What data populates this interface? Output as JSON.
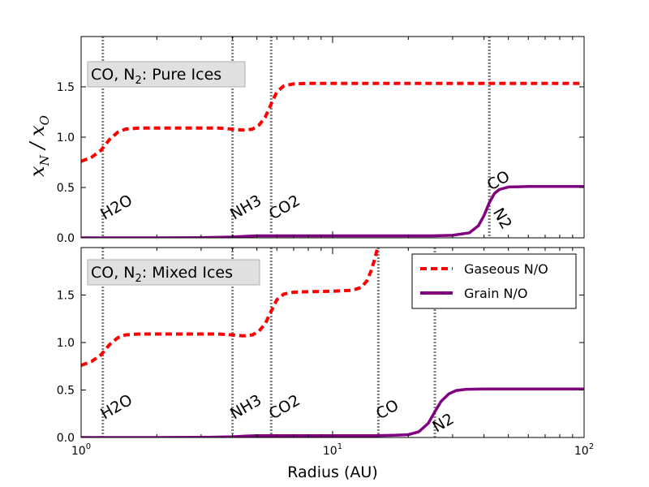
{
  "chart_data": {
    "type": "line",
    "xlabel": "Radius (AU)",
    "ylabel": "x_N / x_O",
    "xscale": "log",
    "xlim": [
      1,
      100
    ],
    "ylim": [
      0,
      2
    ],
    "x_ticks": [
      1,
      10,
      100
    ],
    "x_tick_labels": [
      "10",
      "10",
      "10"
    ],
    "x_tick_exps": [
      "0",
      "1",
      "2"
    ],
    "y_ticks": [
      0,
      0.5,
      1,
      1.5
    ],
    "y_tick_labels": [
      "0.0",
      "0.5",
      "1.0",
      "1.5"
    ],
    "grid": false,
    "colors": {
      "gas": "#ff0000",
      "grain": "#800080",
      "snowline": "#7f7f7f",
      "title_box": "#e0e0e0"
    },
    "legend": {
      "placement": "upper-right",
      "entries": [
        {
          "label": "Gaseous N/O",
          "style": "dashed",
          "color": "#ff0000"
        },
        {
          "label": "Grain N/O",
          "style": "solid",
          "color": "#800080"
        }
      ]
    },
    "panels": [
      {
        "title_prefix": "CO, N",
        "title_sub": "2",
        "title_suffix": ": Pure Ices",
        "snowlines": [
          {
            "label": "H2O",
            "x": 1.22
          },
          {
            "label": "NH3",
            "x": 4.0
          },
          {
            "label": "CO2",
            "x": 5.7
          },
          {
            "label": "CO",
            "x": 42
          },
          {
            "label": "N2",
            "x": 42
          }
        ],
        "series": [
          {
            "name": "Gaseous N/O",
            "x": [
              1.0,
              1.1,
              1.2,
              1.3,
              1.4,
              1.5,
              1.7,
              2.0,
              2.5,
              3.0,
              3.5,
              4.0,
              4.4,
              4.8,
              5.1,
              5.4,
              5.7,
              6.0,
              6.4,
              7.0,
              8.0,
              10,
              15,
              20,
              30,
              40,
              50,
              70,
              100
            ],
            "y": [
              0.76,
              0.8,
              0.87,
              0.98,
              1.05,
              1.08,
              1.09,
              1.09,
              1.09,
              1.09,
              1.09,
              1.08,
              1.07,
              1.08,
              1.12,
              1.2,
              1.33,
              1.45,
              1.51,
              1.53,
              1.535,
              1.535,
              1.535,
              1.535,
              1.535,
              1.535,
              1.535,
              1.535,
              1.535
            ]
          },
          {
            "name": "Grain N/O",
            "x": [
              1.0,
              2.0,
              3.0,
              4.0,
              4.5,
              5.0,
              6.0,
              8.0,
              10,
              15,
              20,
              25,
              30,
              35,
              38,
              40,
              42,
              44,
              46,
              50,
              60,
              70,
              100
            ],
            "y": [
              0.0,
              0.0,
              0.002,
              0.008,
              0.015,
              0.02,
              0.02,
              0.02,
              0.02,
              0.02,
              0.02,
              0.02,
              0.025,
              0.05,
              0.12,
              0.22,
              0.35,
              0.44,
              0.48,
              0.505,
              0.51,
              0.51,
              0.51
            ]
          }
        ]
      },
      {
        "title_prefix": "CO, N",
        "title_sub": "2",
        "title_suffix": ": Mixed Ices",
        "snowlines": [
          {
            "label": "H2O",
            "x": 1.22
          },
          {
            "label": "NH3",
            "x": 4.0
          },
          {
            "label": "CO2",
            "x": 5.7
          },
          {
            "label": "CO",
            "x": 15.2
          },
          {
            "label": "N2",
            "x": 25.5
          }
        ],
        "series": [
          {
            "name": "Gaseous N/O",
            "x": [
              1.0,
              1.1,
              1.2,
              1.3,
              1.4,
              1.5,
              1.7,
              2.0,
              2.5,
              3.0,
              3.5,
              4.0,
              4.4,
              4.8,
              5.1,
              5.4,
              5.7,
              6.0,
              6.4,
              7.0,
              8.0,
              10,
              12,
              13,
              13.7,
              14.2,
              14.6,
              14.9,
              15.1
            ],
            "y": [
              0.76,
              0.8,
              0.87,
              0.98,
              1.05,
              1.08,
              1.09,
              1.09,
              1.09,
              1.09,
              1.09,
              1.08,
              1.07,
              1.08,
              1.12,
              1.2,
              1.33,
              1.45,
              1.51,
              1.53,
              1.535,
              1.54,
              1.55,
              1.58,
              1.65,
              1.75,
              1.85,
              1.94,
              2.0
            ]
          },
          {
            "name": "Grain N/O",
            "x": [
              1.0,
              2.0,
              3.0,
              4.0,
              4.5,
              5.0,
              6.0,
              8.0,
              10,
              15,
              18,
              20,
              22,
              24,
              25.5,
              27,
              29,
              31,
              34,
              40,
              50,
              70,
              100
            ],
            "y": [
              0.0,
              0.0,
              0.002,
              0.008,
              0.015,
              0.02,
              0.02,
              0.02,
              0.02,
              0.02,
              0.025,
              0.03,
              0.06,
              0.15,
              0.27,
              0.38,
              0.46,
              0.495,
              0.508,
              0.51,
              0.51,
              0.51,
              0.51
            ]
          }
        ]
      }
    ]
  }
}
